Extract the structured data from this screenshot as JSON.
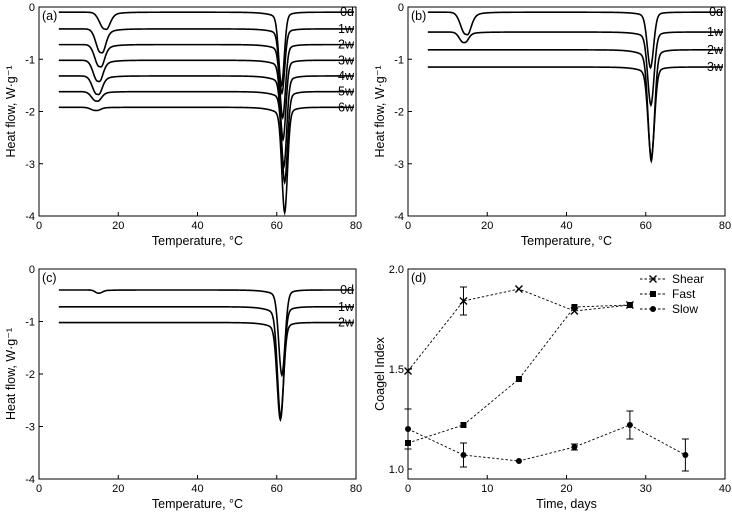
{
  "chart_data": [
    {
      "type": "line",
      "panel": "(a)",
      "xlabel": "Temperature, °C",
      "ylabel": "Heat flow, W·g⁻¹",
      "xlim": [
        0,
        80
      ],
      "ylim": [
        -4,
        0
      ],
      "xticks": [
        "0",
        "20",
        "40",
        "60",
        "80"
      ],
      "yticks": [
        "0",
        "-1",
        "-2",
        "-3",
        "-4"
      ],
      "series": [
        {
          "name": "0d",
          "baseline": -0.1,
          "peak1": {
            "x": 16.5,
            "depth": 0.32,
            "width": 1.2
          },
          "peak2": {
            "x": 61.2,
            "depth": 1.25,
            "width": 0.7
          }
        },
        {
          "name": "1w",
          "baseline": -0.42,
          "peak1": {
            "x": 15.5,
            "depth": 0.45,
            "width": 1.1
          },
          "peak2": {
            "x": 61.3,
            "depth": 1.1,
            "width": 0.7
          }
        },
        {
          "name": "2w",
          "baseline": -0.72,
          "peak1": {
            "x": 15.2,
            "depth": 0.42,
            "width": 1.1
          },
          "peak2": {
            "x": 61.5,
            "depth": 1.25,
            "width": 0.7
          }
        },
        {
          "name": "3w",
          "baseline": -1.02,
          "peak1": {
            "x": 14.8,
            "depth": 0.4,
            "width": 1.1
          },
          "peak2": {
            "x": 61.6,
            "depth": 1.35,
            "width": 0.7
          }
        },
        {
          "name": "4w",
          "baseline": -1.32,
          "peak1": {
            "x": 14.6,
            "depth": 0.35,
            "width": 1.1
          },
          "peak2": {
            "x": 61.8,
            "depth": 1.55,
            "width": 0.7
          }
        },
        {
          "name": "5w",
          "baseline": -1.62,
          "peak1": {
            "x": 14.4,
            "depth": 0.18,
            "width": 1.1
          },
          "peak2": {
            "x": 62.0,
            "depth": 1.55,
            "width": 0.7
          }
        },
        {
          "name": "6w",
          "baseline": -1.92,
          "peak1": {
            "x": 14.2,
            "depth": 0.06,
            "width": 1.1
          },
          "peak2": {
            "x": 62.0,
            "depth": 1.8,
            "width": 0.7
          }
        }
      ]
    },
    {
      "type": "line",
      "panel": "(b)",
      "xlabel": "Temperature, °C",
      "ylabel": "Heat flow, W·g⁻¹",
      "xlim": [
        0,
        80
      ],
      "ylim": [
        -4,
        0
      ],
      "xticks": [
        "0",
        "20",
        "40",
        "60",
        "80"
      ],
      "yticks": [
        "0",
        "-1",
        "-2",
        "-3",
        "-4"
      ],
      "series": [
        {
          "name": "0d",
          "baseline": -0.1,
          "peak1": {
            "x": 14.5,
            "depth": 0.42,
            "width": 1.2
          },
          "peak2": {
            "x": 61.2,
            "depth": 0.95,
            "width": 0.8
          }
        },
        {
          "name": "1w",
          "baseline": -0.48,
          "peak1": {
            "x": 14.0,
            "depth": 0.2,
            "width": 1.0
          },
          "peak2": {
            "x": 61.3,
            "depth": 1.25,
            "width": 0.8
          }
        },
        {
          "name": "2w",
          "baseline": -0.82,
          "peak1": {
            "x": 14.0,
            "depth": 0.0,
            "width": 1.0
          },
          "peak2": {
            "x": 61.4,
            "depth": 1.9,
            "width": 0.8
          }
        },
        {
          "name": "3w",
          "baseline": -1.15,
          "peak1": {
            "x": 14.0,
            "depth": 0.0,
            "width": 1.0
          },
          "peak2": {
            "x": 61.4,
            "depth": 1.55,
            "width": 0.8
          }
        }
      ]
    },
    {
      "type": "line",
      "panel": "(c)",
      "xlabel": "Temperature, °C",
      "ylabel": "Heat flow, W·g⁻¹",
      "xlim": [
        0,
        80
      ],
      "ylim": [
        -4,
        0
      ],
      "xticks": [
        "0",
        "20",
        "40",
        "60",
        "80"
      ],
      "yticks": [
        "0",
        "-1",
        "-2",
        "-3",
        "-4"
      ],
      "series": [
        {
          "name": "0d",
          "baseline": -0.4,
          "peak1": {
            "x": 15.0,
            "depth": 0.06,
            "width": 0.8
          },
          "peak2": {
            "x": 61.3,
            "depth": 1.45,
            "width": 0.8
          }
        },
        {
          "name": "1w",
          "baseline": -0.72,
          "peak1": {
            "x": 15.0,
            "depth": 0.0,
            "width": 0.8
          },
          "peak2": {
            "x": 61.0,
            "depth": 1.9,
            "width": 0.8
          }
        },
        {
          "name": "2w",
          "baseline": -1.02,
          "peak1": {
            "x": 15.0,
            "depth": 0.0,
            "width": 0.8
          },
          "peak2": {
            "x": 60.9,
            "depth": 1.65,
            "width": 0.8
          }
        }
      ]
    },
    {
      "type": "line",
      "panel": "(d)",
      "xlabel": "Time, days",
      "ylabel": "Coagel Index",
      "xlim": [
        0,
        40
      ],
      "ylim": [
        0.95,
        2.0
      ],
      "xticks": [
        "0",
        "10",
        "20",
        "30",
        "40"
      ],
      "yticks": [
        "1.0",
        "1.5",
        "2.0"
      ],
      "legend": "top-right",
      "series": [
        {
          "name": "Shear",
          "marker": "x",
          "points": [
            {
              "x": 0,
              "y": 1.49
            },
            {
              "x": 7,
              "y": 1.84,
              "err": 0.07
            },
            {
              "x": 14,
              "y": 1.9
            },
            {
              "x": 21,
              "y": 1.79
            },
            {
              "x": 28,
              "y": 1.82
            }
          ]
        },
        {
          "name": "Fast",
          "marker": "square",
          "points": [
            {
              "x": 0,
              "y": 1.13
            },
            {
              "x": 7,
              "y": 1.22
            },
            {
              "x": 14,
              "y": 1.45
            },
            {
              "x": 21,
              "y": 1.81
            },
            {
              "x": 28,
              "y": 1.82
            }
          ]
        },
        {
          "name": "Slow",
          "marker": "circle",
          "points": [
            {
              "x": 0,
              "y": 1.2,
              "err": 0.1
            },
            {
              "x": 7,
              "y": 1.07,
              "err": 0.06
            },
            {
              "x": 14,
              "y": 1.04
            },
            {
              "x": 21,
              "y": 1.11,
              "err": 0.015
            },
            {
              "x": 28,
              "y": 1.22,
              "err": 0.07
            },
            {
              "x": 35,
              "y": 1.07,
              "err": 0.08
            }
          ]
        }
      ]
    }
  ]
}
